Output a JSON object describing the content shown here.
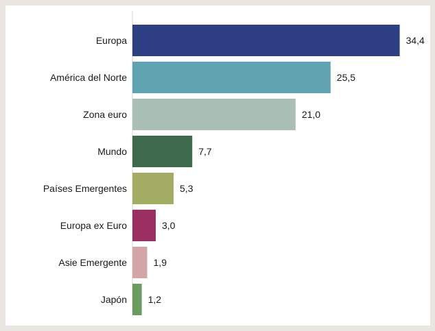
{
  "chart_data": {
    "type": "bar",
    "orientation": "horizontal",
    "categories": [
      "Europa",
      "América del Norte",
      "Zona euro",
      "Mundo",
      "Países Emergentes",
      "Europa ex Euro",
      "Asie Emergente",
      "Japón"
    ],
    "values": [
      34.4,
      25.5,
      21.0,
      7.7,
      5.3,
      3.0,
      1.9,
      1.2
    ],
    "value_labels": [
      "34,4",
      "25,5",
      "21,0",
      "7,7",
      "5,3",
      "3,0",
      "1,9",
      "1,2"
    ],
    "colors": [
      "#2e3e83",
      "#5fa4b0",
      "#a9bfb5",
      "#3c6a4b",
      "#a2ad63",
      "#9b2f62",
      "#d3a5a6",
      "#6a9c5f"
    ],
    "xlim": [
      0,
      36
    ],
    "grid": false,
    "legend": "none"
  }
}
